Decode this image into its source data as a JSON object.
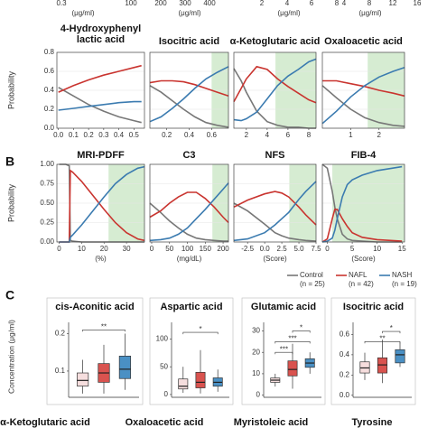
{
  "panel_labels": [
    "B",
    "C"
  ],
  "y_labels": {
    "probability": "Probability",
    "concentration": "Concentration (μg/ml)"
  },
  "top_strip": {
    "ticks": [
      "0.3",
      "100",
      "200",
      "300",
      "400",
      "2",
      "4",
      "6",
      "8",
      "4",
      "8",
      "12",
      "16"
    ],
    "units": [
      "(μg/ml)",
      "(μg/ml)",
      "(μg/ml)",
      "(μg/ml)"
    ]
  },
  "legend_counts": [
    "(n = 25)",
    "(n = 42)",
    "(n = 19)"
  ],
  "cut_titles": [
    "α-Ketoglutaric acid",
    "Oxaloacetic acid",
    "Myristoleic acid",
    "Tyrosine"
  ],
  "chart_data": [
    {
      "type": "line",
      "title": "4-Hydroxyphenyl lactic acid",
      "xlim": [
        -0.01,
        0.57
      ],
      "xticks": [
        {
          "value": 0,
          "label": "0.0"
        },
        0.1,
        0.2,
        0.3,
        0.4,
        0.5
      ],
      "ylim": [
        0,
        0.8
      ],
      "yticks": [
        {
          "value": 0,
          "label": "0.0"
        },
        0.2,
        0.4,
        0.6,
        0.8
      ],
      "x": [
        0,
        0.1,
        0.2,
        0.3,
        0.4,
        0.5,
        0.55
      ],
      "series": [
        {
          "name": "Control",
          "color": "#777777",
          "values": [
            0.43,
            0.34,
            0.25,
            0.18,
            0.12,
            0.08,
            0.06
          ]
        },
        {
          "name": "NAFL",
          "color": "#c9342f",
          "values": [
            0.38,
            0.45,
            0.51,
            0.56,
            0.6,
            0.64,
            0.66
          ]
        },
        {
          "name": "NASH",
          "color": "#3b7bb0",
          "values": [
            0.19,
            0.21,
            0.23,
            0.25,
            0.27,
            0.28,
            0.28
          ]
        }
      ]
    },
    {
      "type": "line",
      "title": "Isocitric acid",
      "xlim": [
        0.05,
        0.75
      ],
      "xticks": [
        0.2,
        0.4,
        0.6
      ],
      "ylim": [
        0,
        0.8
      ],
      "yticks": [
        {
          "value": 0,
          "label": "0.0"
        },
        0.2,
        0.4,
        0.6,
        0.8
      ],
      "highlight": [
        0.6,
        0.75
      ],
      "x": [
        0.05,
        0.15,
        0.25,
        0.35,
        0.45,
        0.55,
        0.65,
        0.75
      ],
      "series": [
        {
          "name": "Control",
          "color": "#777777",
          "values": [
            0.45,
            0.38,
            0.29,
            0.2,
            0.12,
            0.06,
            0.03,
            0.01
          ]
        },
        {
          "name": "NAFL",
          "color": "#c9342f",
          "values": [
            0.48,
            0.5,
            0.5,
            0.49,
            0.46,
            0.42,
            0.38,
            0.34
          ]
        },
        {
          "name": "NASH",
          "color": "#3b7bb0",
          "values": [
            0.07,
            0.12,
            0.21,
            0.31,
            0.42,
            0.52,
            0.59,
            0.65
          ]
        }
      ]
    },
    {
      "type": "line",
      "title": "α-Ketoglutaric acid",
      "xlim": [
        0.8,
        8.7
      ],
      "xticks": [
        2,
        4,
        6,
        8
      ],
      "ylim": [
        0,
        0.8
      ],
      "yticks": [
        {
          "value": 0,
          "label": "0.0"
        },
        0.2,
        0.4,
        0.6,
        0.8
      ],
      "highlight": [
        4.8,
        8.7
      ],
      "x": [
        0.8,
        1.5,
        2,
        3,
        4,
        5,
        6,
        7,
        8,
        8.7
      ],
      "series": [
        {
          "name": "Control",
          "color": "#777777",
          "values": [
            0.63,
            0.5,
            0.38,
            0.18,
            0.07,
            0.03,
            0.01,
            0.01,
            0,
            0
          ]
        },
        {
          "name": "NAFL",
          "color": "#c9342f",
          "values": [
            0.28,
            0.42,
            0.52,
            0.65,
            0.62,
            0.52,
            0.44,
            0.37,
            0.3,
            0.27
          ]
        },
        {
          "name": "NASH",
          "color": "#3b7bb0",
          "values": [
            0.09,
            0.08,
            0.1,
            0.17,
            0.31,
            0.45,
            0.55,
            0.62,
            0.7,
            0.73
          ]
        }
      ]
    },
    {
      "type": "line",
      "title": "Oxaloacetic acid",
      "xlim": [
        0,
        2.9
      ],
      "xticks": [
        1,
        2
      ],
      "ylim": [
        0,
        0.8
      ],
      "yticks": [
        {
          "value": 0,
          "label": "0.0"
        },
        0.2,
        0.4,
        0.6,
        0.8
      ],
      "highlight": [
        1.6,
        2.9
      ],
      "x": [
        0,
        0.5,
        1,
        1.5,
        2,
        2.5,
        2.9
      ],
      "series": [
        {
          "name": "Control",
          "color": "#777777",
          "values": [
            0.45,
            0.32,
            0.2,
            0.11,
            0.06,
            0.03,
            0.02
          ]
        },
        {
          "name": "NAFL",
          "color": "#c9342f",
          "values": [
            0.5,
            0.5,
            0.47,
            0.44,
            0.4,
            0.37,
            0.34
          ]
        },
        {
          "name": "NASH",
          "color": "#3b7bb0",
          "values": [
            0.05,
            0.18,
            0.33,
            0.45,
            0.54,
            0.6,
            0.64
          ]
        }
      ]
    },
    {
      "type": "line",
      "title": "MRI-PDFF",
      "x_label": "(%)",
      "xlim": [
        -1,
        38
      ],
      "xticks": [
        0,
        10,
        20,
        30
      ],
      "ylim": [
        0,
        1
      ],
      "yticks": [
        {
          "value": 0,
          "label": "0.00"
        },
        {
          "value": 0.25,
          "label": "0.25"
        },
        {
          "value": 0.5,
          "label": "0.50"
        },
        {
          "value": 0.75,
          "label": "0.75"
        },
        {
          "value": 1,
          "label": "1.00"
        }
      ],
      "highlight": [
        22,
        38
      ],
      "x": [
        0,
        3,
        4.5,
        5,
        6,
        10,
        15,
        20,
        25,
        30,
        35,
        38
      ],
      "series": [
        {
          "name": "Control",
          "color": "#777777",
          "values": [
            1,
            1,
            0.98,
            0.02,
            0.01,
            0,
            0,
            0,
            0,
            0,
            0,
            0
          ]
        },
        {
          "name": "NAFL",
          "color": "#c9342f",
          "values": [
            0,
            0,
            0,
            0.92,
            0.9,
            0.78,
            0.6,
            0.42,
            0.25,
            0.12,
            0.04,
            0.02
          ]
        },
        {
          "name": "NASH",
          "color": "#3b7bb0",
          "values": [
            0,
            0,
            0,
            0.06,
            0.09,
            0.22,
            0.4,
            0.58,
            0.75,
            0.87,
            0.95,
            0.97
          ]
        }
      ]
    },
    {
      "type": "line",
      "title": "C3",
      "x_label": "(mg/dL)",
      "xlim": [
        -5,
        215
      ],
      "xticks": [
        0,
        50,
        100,
        150,
        200
      ],
      "ylim": [
        0,
        1
      ],
      "yticks": [
        {
          "value": 0,
          "label": "0.00"
        },
        {
          "value": 0.25,
          "label": "0.25"
        },
        {
          "value": 0.5,
          "label": "0.50"
        },
        {
          "value": 0.75,
          "label": "0.75"
        },
        {
          "value": 1,
          "label": "1.00"
        }
      ],
      "highlight": [
        170,
        215
      ],
      "x": [
        -5,
        25,
        50,
        75,
        100,
        125,
        150,
        175,
        200,
        215
      ],
      "series": [
        {
          "name": "Control",
          "color": "#777777",
          "values": [
            0.5,
            0.38,
            0.27,
            0.18,
            0.1,
            0.05,
            0.03,
            0.02,
            0.01,
            0.01
          ]
        },
        {
          "name": "NAFL",
          "color": "#c9342f",
          "values": [
            0.32,
            0.4,
            0.5,
            0.58,
            0.64,
            0.64,
            0.56,
            0.45,
            0.32,
            0.25
          ]
        },
        {
          "name": "NASH",
          "color": "#3b7bb0",
          "values": [
            0.02,
            0.03,
            0.05,
            0.1,
            0.18,
            0.3,
            0.42,
            0.55,
            0.68,
            0.76
          ]
        }
      ]
    },
    {
      "type": "line",
      "title": "NFS",
      "x_label": "(Score)",
      "xlim": [
        -4.5,
        7.5
      ],
      "xticks": [
        -2.5,
        {
          "value": 0,
          "label": "0.0"
        },
        2.5,
        {
          "value": 5,
          "label": "5.0"
        },
        7.5
      ],
      "ylim": [
        0,
        1
      ],
      "yticks": [
        {
          "value": 0,
          "label": "0.00"
        },
        {
          "value": 0.25,
          "label": "0.25"
        },
        {
          "value": 0.5,
          "label": "0.50"
        },
        {
          "value": 0.75,
          "label": "0.75"
        },
        {
          "value": 1,
          "label": "1.00"
        }
      ],
      "highlight": [
        3.6,
        7.5
      ],
      "x": [
        -4.5,
        -2.5,
        0,
        1.5,
        2.5,
        3.5,
        5,
        6,
        7.5
      ],
      "series": [
        {
          "name": "Control",
          "color": "#777777",
          "values": [
            0.5,
            0.4,
            0.23,
            0.12,
            0.08,
            0.05,
            0.03,
            0.02,
            0.01
          ]
        },
        {
          "name": "NAFL",
          "color": "#c9342f",
          "values": [
            0.45,
            0.54,
            0.62,
            0.65,
            0.63,
            0.58,
            0.45,
            0.35,
            0.22
          ]
        },
        {
          "name": "NASH",
          "color": "#3b7bb0",
          "values": [
            0.02,
            0.04,
            0.12,
            0.22,
            0.3,
            0.38,
            0.55,
            0.65,
            0.78
          ]
        }
      ]
    },
    {
      "type": "line",
      "title": "FIB-4",
      "x_label": "(Score)",
      "xlim": [
        -1,
        15.5
      ],
      "xticks": [
        0,
        5,
        10,
        15
      ],
      "ylim": [
        0,
        1
      ],
      "yticks": [
        {
          "value": 0,
          "label": "0.00"
        },
        {
          "value": 0.25,
          "label": "0.25"
        },
        {
          "value": 0.5,
          "label": "0.50"
        },
        {
          "value": 0.75,
          "label": "0.75"
        },
        {
          "value": 1,
          "label": "1.00"
        }
      ],
      "highlight": [
        1,
        15.5
      ],
      "x": [
        -1,
        0,
        1,
        1.5,
        2,
        3,
        4,
        5,
        7,
        10,
        15
      ],
      "series": [
        {
          "name": "Control",
          "color": "#777777",
          "values": [
            1,
            0.95,
            0.65,
            0.45,
            0.3,
            0.1,
            0.04,
            0.02,
            0.01,
            0,
            0
          ]
        },
        {
          "name": "NAFL",
          "color": "#c9342f",
          "values": [
            0,
            0.04,
            0.3,
            0.42,
            0.42,
            0.3,
            0.2,
            0.12,
            0.06,
            0.03,
            0.01
          ]
        },
        {
          "name": "NASH",
          "color": "#3b7bb0",
          "values": [
            0,
            0.01,
            0.05,
            0.15,
            0.3,
            0.58,
            0.74,
            0.8,
            0.86,
            0.92,
            0.97
          ]
        }
      ]
    },
    {
      "type": "box",
      "title": "cis-Aconitic acid",
      "ylim": [
        0.03,
        0.23
      ],
      "yticks": [
        0.1,
        0.2
      ],
      "boxes": [
        {
          "color": "#f6dede",
          "whisker_low": 0.04,
          "q1": 0.06,
          "median": 0.075,
          "q3": 0.095,
          "whisker_high": 0.13
        },
        {
          "color": "#d9534f",
          "whisker_low": 0.04,
          "q1": 0.07,
          "median": 0.095,
          "q3": 0.12,
          "whisker_high": 0.17
        },
        {
          "color": "#4a90c4",
          "whisker_low": 0.05,
          "q1": 0.08,
          "median": 0.105,
          "q3": 0.14,
          "whisker_high": 0.2
        }
      ],
      "brackets": [
        {
          "from": 0,
          "to": 2,
          "y": 0.21,
          "label": "**"
        }
      ]
    },
    {
      "type": "box",
      "title": "Aspartic acid",
      "ylim": [
        -5,
        130
      ],
      "yticks": [
        0,
        50,
        100
      ],
      "boxes": [
        {
          "color": "#f6dede",
          "whisker_low": 3,
          "q1": 10,
          "median": 15,
          "q3": 28,
          "whisker_high": 50
        },
        {
          "color": "#d9534f",
          "whisker_low": 2,
          "q1": 12,
          "median": 22,
          "q3": 40,
          "whisker_high": 80
        },
        {
          "color": "#4a90c4",
          "whisker_low": 5,
          "q1": 15,
          "median": 22,
          "q3": 30,
          "whisker_high": 45
        }
      ],
      "brackets": [
        {
          "from": 0,
          "to": 2,
          "y": 112,
          "label": "*"
        }
      ]
    },
    {
      "type": "box",
      "title": "Glutamic acid",
      "ylim": [
        -1,
        34
      ],
      "yticks": [
        0,
        10,
        20,
        30
      ],
      "boxes": [
        {
          "color": "#f6dede",
          "whisker_low": 4,
          "q1": 6,
          "median": 7,
          "q3": 8,
          "whisker_high": 10
        },
        {
          "color": "#d9534f",
          "whisker_low": 3,
          "q1": 9,
          "median": 12,
          "q3": 16,
          "whisker_high": 24
        },
        {
          "color": "#4a90c4",
          "whisker_low": 10,
          "q1": 13,
          "median": 15,
          "q3": 17,
          "whisker_high": 20
        }
      ],
      "brackets": [
        {
          "from": 0,
          "to": 1,
          "y": 20,
          "label": "***"
        },
        {
          "from": 0,
          "to": 2,
          "y": 25,
          "label": "***"
        },
        {
          "from": 1,
          "to": 2,
          "y": 30,
          "label": "*"
        }
      ]
    },
    {
      "type": "box",
      "title": "Isocitric acid",
      "ylim": [
        -0.02,
        0.72
      ],
      "yticks": [
        {
          "value": 0,
          "label": "0.0"
        },
        0.2,
        0.4,
        0.6
      ],
      "boxes": [
        {
          "color": "#f6dede",
          "whisker_low": 0.15,
          "q1": 0.22,
          "median": 0.27,
          "q3": 0.33,
          "whisker_high": 0.42
        },
        {
          "color": "#d9534f",
          "whisker_low": 0.12,
          "q1": 0.22,
          "median": 0.3,
          "q3": 0.37,
          "whisker_high": 0.55
        },
        {
          "color": "#4a90c4",
          "whisker_low": 0.28,
          "q1": 0.32,
          "median": 0.4,
          "q3": 0.45,
          "whisker_high": 0.52
        }
      ],
      "brackets": [
        {
          "from": 0,
          "to": 2,
          "y": 0.53,
          "label": "**"
        },
        {
          "from": 1,
          "to": 2,
          "y": 0.63,
          "label": "*"
        }
      ]
    }
  ]
}
